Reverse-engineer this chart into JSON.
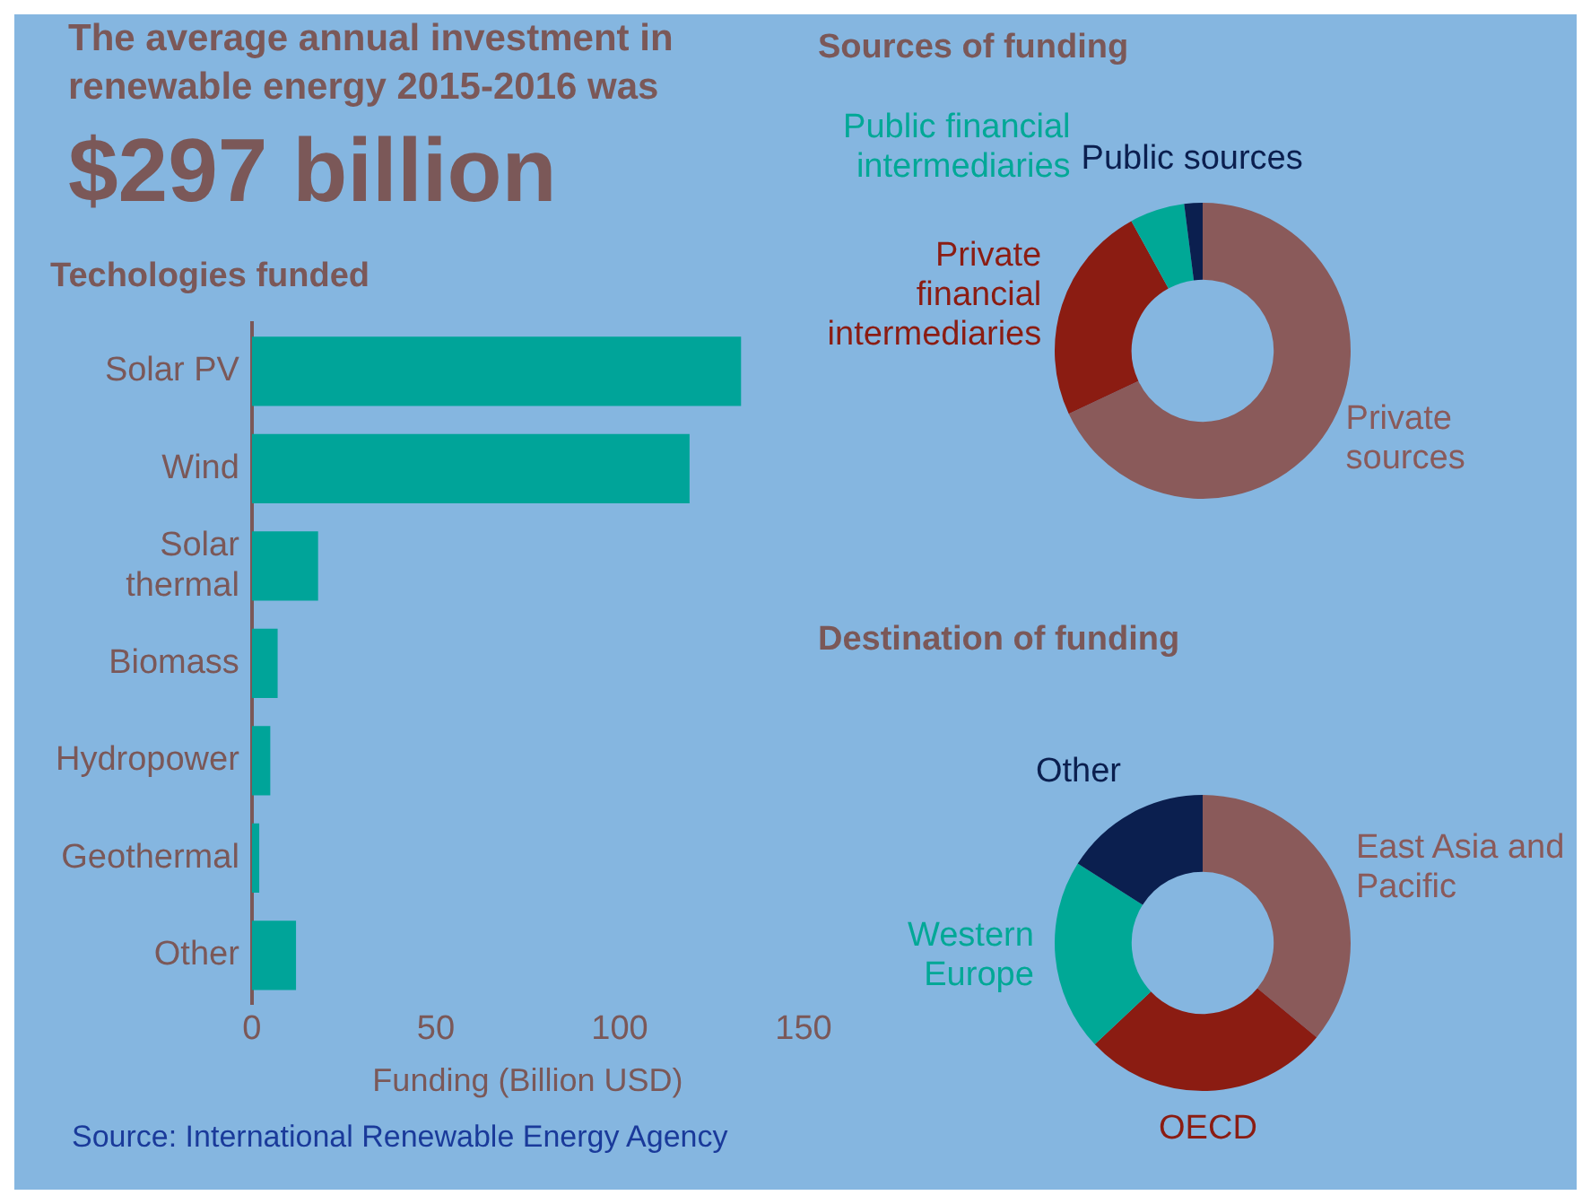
{
  "chart_data": [
    {
      "type": "other",
      "title": "The average annual investment in renewable energy 2015-2016 was",
      "subtitle": "$297 billion"
    },
    {
      "type": "bar",
      "orientation": "horizontal",
      "title": "Techologies funded",
      "categories": [
        "Solar PV",
        "Wind",
        "Solar thermal",
        "Biomass",
        "Hydropower",
        "Geothermal",
        "Other"
      ],
      "values": [
        133,
        119,
        18,
        7,
        5,
        2,
        12
      ],
      "color": "#00a499",
      "xlim": [
        0,
        150
      ],
      "xticks": [
        0,
        50,
        100,
        150
      ],
      "xlabel": "Funding (Billion USD)",
      "annotations": [
        "Source: International Renewable Energy Agency"
      ]
    },
    {
      "type": "donut",
      "title": "Sources of funding",
      "categories": [
        "Private sources",
        "Private financial intermediaries",
        "Public financial intermediaries",
        "Public sources"
      ],
      "values": [
        68,
        24,
        6,
        2
      ],
      "colors": [
        "#8a5a5a",
        "#8b1c12",
        "#00a896",
        "#0b1f4f"
      ]
    },
    {
      "type": "donut",
      "title": "Destination of funding",
      "categories": [
        "East Asia and Pacific",
        "OECD",
        "Western Europe",
        "Other"
      ],
      "values": [
        36,
        27,
        21,
        16
      ],
      "colors": [
        "#8a5a5a",
        "#8b1c12",
        "#00a896",
        "#0b1f4f"
      ]
    }
  ]
}
